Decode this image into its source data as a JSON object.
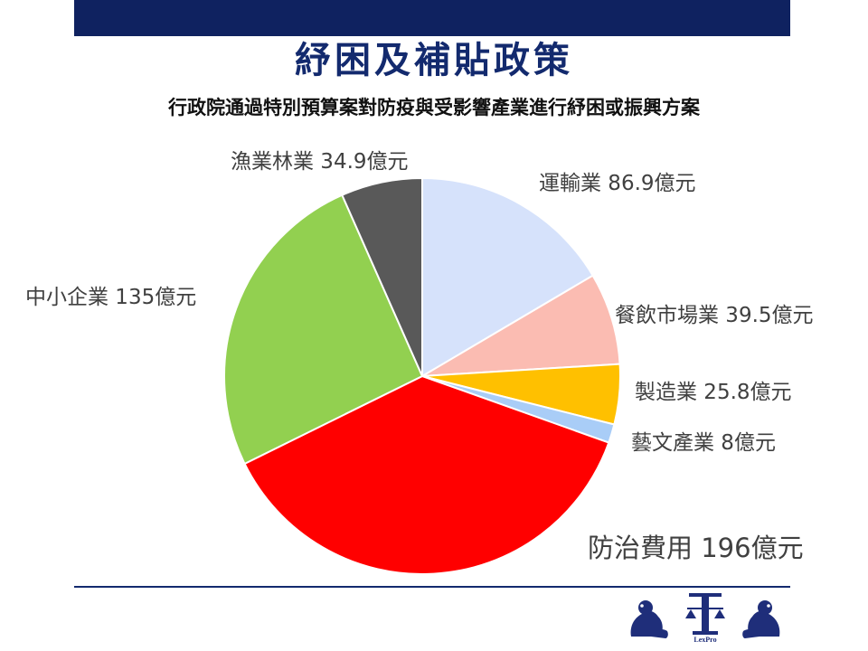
{
  "slide": {
    "title": "紓困及補貼政策",
    "subtitle": "行政院通過特別預算案對防疫與受影響產業進行紓困或振興方案"
  },
  "colors": {
    "bar": "#0f2260",
    "title": "#132a6e",
    "label": "#404040"
  },
  "logo": {
    "text": "LexPro",
    "icons": [
      "lion-icon",
      "scales-icon",
      "lion-icon"
    ]
  },
  "chart_data": {
    "type": "pie",
    "unit": "億元",
    "start_angle_deg": 0,
    "direction": "clockwise",
    "slices": [
      {
        "label": "運輸業 86.9億元",
        "name": "運輸業",
        "value": 86.9,
        "color": "#d6e2fb"
      },
      {
        "label": "餐飲市場業 39.5億元",
        "name": "餐飲市場業",
        "value": 39.5,
        "color": "#fbbcb2"
      },
      {
        "label": "製造業 25.8億元",
        "name": "製造業",
        "value": 25.8,
        "color": "#ffc000"
      },
      {
        "label": "藝文產業 8億元",
        "name": "藝文產業",
        "value": 8,
        "color": "#a9cdf7"
      },
      {
        "label": "防治費用 196億元",
        "name": "防治費用",
        "value": 196,
        "color": "#ff0000"
      },
      {
        "label": "中小企業 135億元",
        "name": "中小企業",
        "value": 135,
        "color": "#92d050"
      },
      {
        "label": "漁業林業 34.9億元",
        "name": "漁業林業",
        "value": 34.9,
        "color": "#595959"
      }
    ]
  }
}
